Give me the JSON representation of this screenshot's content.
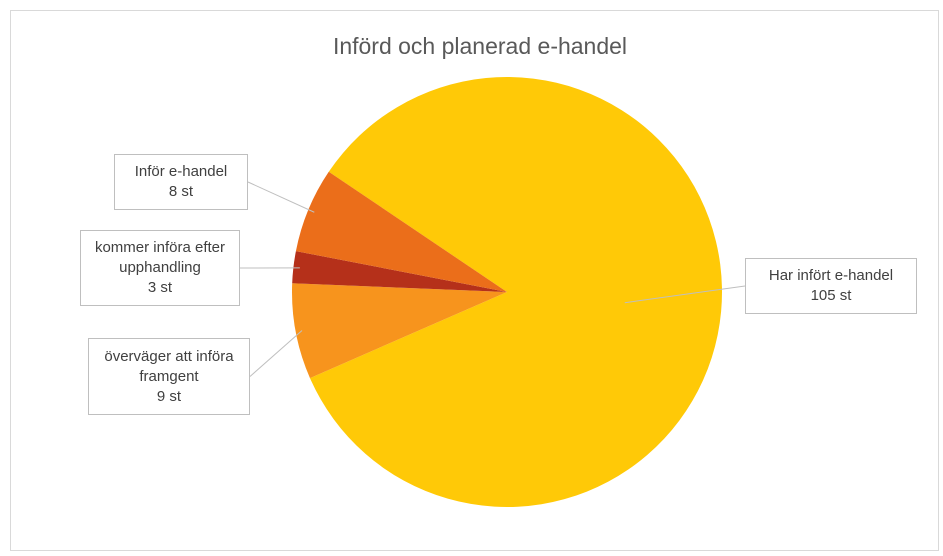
{
  "chart_data": {
    "type": "pie",
    "title": "Införd och planerad e-handel",
    "categories": [
      "Har infört e-handel",
      "överväger att införa framgent",
      "kommer införa efter upphandling",
      "Inför e-handel"
    ],
    "values": [
      105,
      9,
      3,
      8
    ],
    "value_labels": [
      "105 st",
      "9 st",
      "3 st",
      "8 st"
    ],
    "colors": [
      "#ffc907",
      "#f7941d",
      "#b5301a",
      "#eb6e1a"
    ]
  }
}
